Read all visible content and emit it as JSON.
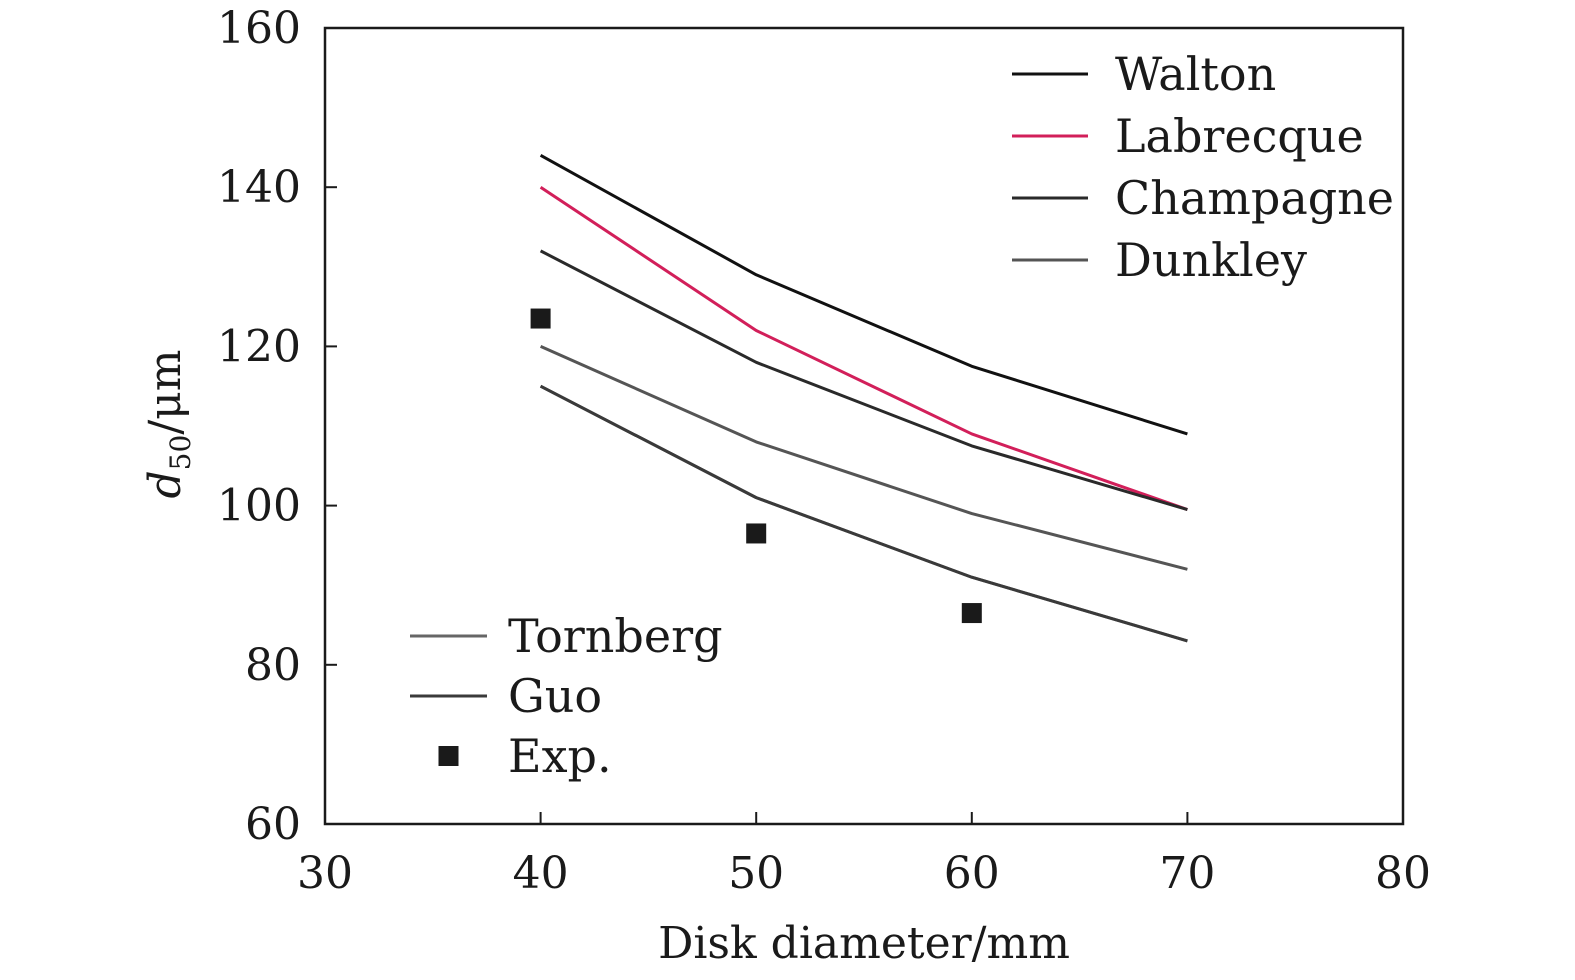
{
  "chart_data": {
    "type": "line",
    "xlabel": "Disk diameter/mm",
    "ylabel": {
      "main": "d",
      "sub": "50",
      "unit": "/μm"
    },
    "xlim": [
      30,
      80
    ],
    "ylim": [
      60,
      160
    ],
    "xticks": [
      30,
      40,
      50,
      60,
      70,
      80
    ],
    "yticks": [
      60,
      80,
      100,
      120,
      140,
      160
    ],
    "x": [
      40,
      50,
      60,
      70
    ],
    "series": [
      {
        "name": "Walton",
        "color": "#111111",
        "values": [
          144,
          129,
          117.5,
          109
        ]
      },
      {
        "name": "Labrecque",
        "color": "#d21f5a",
        "values": [
          140,
          122,
          109,
          99.5
        ]
      },
      {
        "name": "Champagne",
        "color": "#2a2a2a",
        "values": [
          132,
          118,
          107.5,
          99.5
        ]
      },
      {
        "name": "Dunkley",
        "color": "#555555",
        "values": [
          120,
          108,
          99,
          92
        ]
      },
      {
        "name": "Tornberg",
        "color": "#666666",
        "values": [
          115,
          101,
          91,
          83
        ]
      },
      {
        "name": "Guo",
        "color": "#3a3a3a",
        "values": [
          115,
          101,
          91,
          83
        ]
      }
    ],
    "scatter": {
      "name": "Exp.",
      "color": "#1a1a1a",
      "x": [
        40,
        50,
        60
      ],
      "y": [
        123.5,
        96.5,
        86.5
      ]
    },
    "legends": [
      {
        "position": "top-right",
        "items": [
          "Walton",
          "Labrecque",
          "Champagne",
          "Dunkley"
        ]
      },
      {
        "position": "bottom-left",
        "items": [
          "Tornberg",
          "Guo",
          "Exp."
        ]
      }
    ],
    "grid": false
  }
}
